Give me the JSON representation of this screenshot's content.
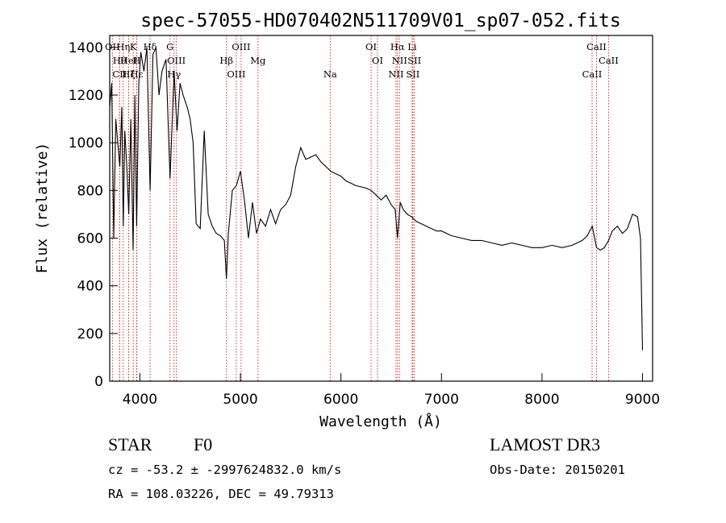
{
  "chart_data": {
    "type": "line",
    "title": "spec-57055-HD070402N511709V01_sp07-052.fits",
    "xlabel": "Wavelength (Å)",
    "ylabel": "Flux (relative)",
    "xlim": [
      3700,
      9100
    ],
    "ylim": [
      0,
      1450
    ],
    "xticks": [
      4000,
      5000,
      6000,
      7000,
      8000,
      9000
    ],
    "yticks": [
      0,
      200,
      400,
      600,
      800,
      1000,
      1200,
      1400
    ],
    "grid": false,
    "series": [
      {
        "name": "spectrum",
        "x": [
          3700,
          3720,
          3740,
          3760,
          3780,
          3800,
          3820,
          3835,
          3850,
          3870,
          3889,
          3910,
          3933,
          3950,
          3968,
          3990,
          4010,
          4040,
          4070,
          4102,
          4130,
          4160,
          4190,
          4220,
          4260,
          4300,
          4340,
          4370,
          4400,
          4430,
          4470,
          4500,
          4530,
          4560,
          4600,
          4640,
          4680,
          4720,
          4760,
          4800,
          4840,
          4861,
          4880,
          4920,
          4960,
          5000,
          5040,
          5080,
          5120,
          5160,
          5200,
          5250,
          5300,
          5350,
          5400,
          5450,
          5500,
          5550,
          5600,
          5650,
          5700,
          5750,
          5800,
          5850,
          5900,
          5950,
          6000,
          6050,
          6100,
          6150,
          6200,
          6250,
          6300,
          6350,
          6400,
          6450,
          6500,
          6540,
          6563,
          6590,
          6620,
          6660,
          6700,
          6750,
          6800,
          6850,
          6900,
          6950,
          7000,
          7100,
          7200,
          7300,
          7400,
          7500,
          7600,
          7700,
          7800,
          7900,
          8000,
          8100,
          8200,
          8300,
          8400,
          8450,
          8500,
          8542,
          8580,
          8620,
          8662,
          8700,
          8750,
          8800,
          8850,
          8900,
          8950,
          8980,
          9000
        ],
        "y": [
          1150,
          1250,
          600,
          1100,
          1000,
          900,
          1150,
          650,
          1050,
          900,
          700,
          1100,
          550,
          1200,
          650,
          1250,
          1380,
          1300,
          1400,
          800,
          1370,
          1400,
          1200,
          1300,
          1350,
          850,
          1300,
          1050,
          1250,
          1200,
          1150,
          1100,
          1000,
          660,
          640,
          1050,
          700,
          650,
          620,
          610,
          590,
          430,
          620,
          800,
          820,
          880,
          760,
          600,
          750,
          620,
          680,
          650,
          720,
          660,
          720,
          740,
          780,
          900,
          980,
          930,
          940,
          950,
          920,
          900,
          880,
          870,
          860,
          840,
          830,
          820,
          815,
          810,
          800,
          780,
          760,
          780,
          740,
          720,
          600,
          750,
          720,
          700,
          690,
          670,
          660,
          650,
          640,
          630,
          630,
          610,
          600,
          590,
          590,
          580,
          570,
          580,
          570,
          560,
          560,
          570,
          560,
          570,
          590,
          610,
          650,
          560,
          550,
          560,
          590,
          630,
          650,
          620,
          640,
          700,
          690,
          600,
          130
        ]
      }
    ],
    "line_markers": [
      {
        "name": "OII",
        "wave": 3727
      },
      {
        "name": "Hθ",
        "wave": 3798
      },
      {
        "name": "CII",
        "wave": 3799
      },
      {
        "name": "Hη",
        "wave": 3835
      },
      {
        "name": "HeI",
        "wave": 3889
      },
      {
        "name": "Hζ",
        "wave": 3889
      },
      {
        "name": "K",
        "wave": 3934
      },
      {
        "name": "H",
        "wave": 3968
      },
      {
        "name": "Hε",
        "wave": 3970
      },
      {
        "name": "Hδ",
        "wave": 4102
      },
      {
        "name": "OIII",
        "wave": 4363
      },
      {
        "name": "Hγ",
        "wave": 4340
      },
      {
        "name": "G",
        "wave": 4300
      },
      {
        "name": "Hβ",
        "wave": 4861
      },
      {
        "name": "OIII",
        "wave": 4959
      },
      {
        "name": "OIII",
        "wave": 5007
      },
      {
        "name": "Mg",
        "wave": 5175
      },
      {
        "name": "Na",
        "wave": 5893
      },
      {
        "name": "OI",
        "wave": 6300
      },
      {
        "name": "OI",
        "wave": 6364
      },
      {
        "name": "NII",
        "wave": 6548
      },
      {
        "name": "Hα",
        "wave": 6563
      },
      {
        "name": "NII",
        "wave": 6583
      },
      {
        "name": "SII",
        "wave": 6716
      },
      {
        "name": "Li",
        "wave": 6708
      },
      {
        "name": "SII",
        "wave": 6731
      },
      {
        "name": "CaII",
        "wave": 8498
      },
      {
        "name": "CaII",
        "wave": 8542
      },
      {
        "name": "CaII",
        "wave": 8662
      }
    ]
  },
  "info": {
    "object_class": "STAR",
    "subclass": "F0",
    "survey": "LAMOST DR3",
    "velocity": "cz = -53.2 ± -2997624832.0 km/s",
    "obs_date": "Obs-Date: 20150201",
    "coords": "RA = 108.03226, DEC =  49.79313"
  }
}
